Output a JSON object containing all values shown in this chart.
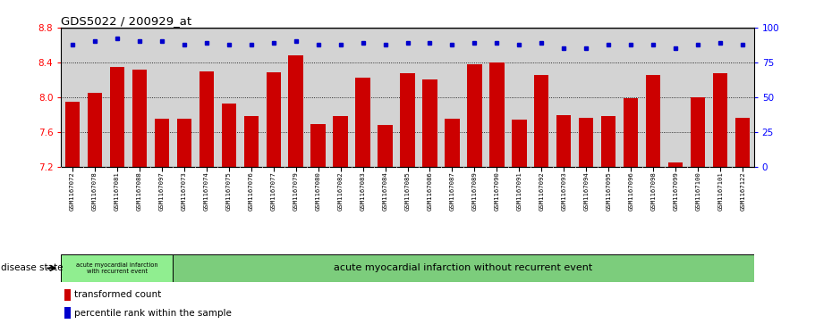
{
  "title": "GDS5022 / 200929_at",
  "samples": [
    "GSM1167072",
    "GSM1167078",
    "GSM1167081",
    "GSM1167088",
    "GSM1167097",
    "GSM1167073",
    "GSM1167074",
    "GSM1167075",
    "GSM1167076",
    "GSM1167077",
    "GSM1167079",
    "GSM1167080",
    "GSM1167082",
    "GSM1167083",
    "GSM1167084",
    "GSM1167085",
    "GSM1167086",
    "GSM1167087",
    "GSM1167089",
    "GSM1167090",
    "GSM1167091",
    "GSM1167092",
    "GSM1167093",
    "GSM1167094",
    "GSM1167095",
    "GSM1167096",
    "GSM1167098",
    "GSM1167099",
    "GSM1167100",
    "GSM1167101",
    "GSM1167122"
  ],
  "bar_values": [
    7.95,
    8.05,
    8.35,
    8.32,
    7.75,
    7.75,
    8.3,
    7.93,
    7.78,
    8.29,
    8.48,
    7.69,
    7.78,
    8.22,
    7.68,
    8.28,
    8.2,
    7.75,
    8.38,
    8.4,
    7.74,
    8.26,
    7.79,
    7.76,
    7.78,
    7.99,
    8.26,
    7.25,
    8.0,
    8.28,
    7.76
  ],
  "percentile_values": [
    88,
    90,
    92,
    90,
    90,
    88,
    89,
    88,
    88,
    89,
    90,
    88,
    88,
    89,
    88,
    89,
    89,
    88,
    89,
    89,
    88,
    89,
    85,
    85,
    88,
    88,
    88,
    85,
    88,
    89,
    88
  ],
  "bar_color": "#cc0000",
  "dot_color": "#0000cc",
  "ylim_left": [
    7.2,
    8.8
  ],
  "ylim_right": [
    0,
    100
  ],
  "yticks_left": [
    7.2,
    7.6,
    8.0,
    8.4,
    8.8
  ],
  "yticks_right": [
    0,
    25,
    50,
    75,
    100
  ],
  "grid_values": [
    7.6,
    8.0,
    8.4
  ],
  "group1_count": 5,
  "group1_label": "acute myocardial infarction\nwith recurrent event",
  "group2_label": "acute myocardial infarction without recurrent event",
  "group1_color": "#90ee90",
  "group2_color": "#7ccd7c",
  "legend1_label": "transformed count",
  "legend2_label": "percentile rank within the sample",
  "disease_state_label": "disease state",
  "plot_bg_color": "#d3d3d3",
  "tick_label_bg": "#d3d3d3"
}
